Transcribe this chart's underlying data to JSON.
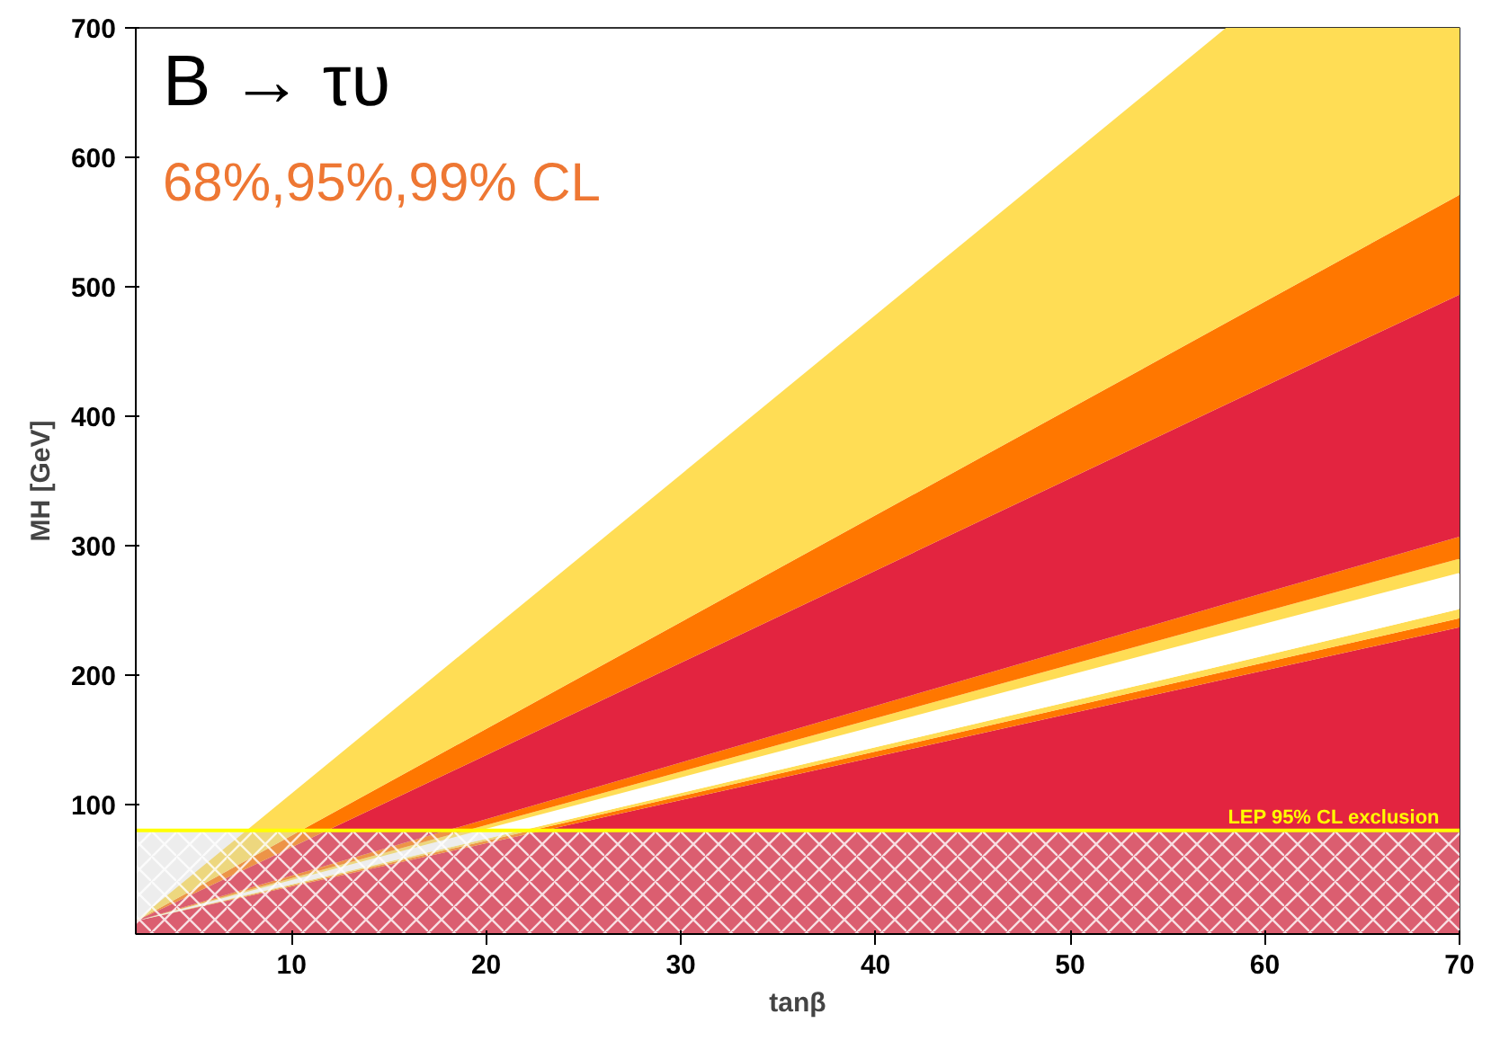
{
  "chart_data": {
    "type": "area",
    "stacked": true,
    "xlabel": "tanβ",
    "ylabel": "MH [GeV]",
    "annotations": [
      "B → τυ",
      "68%,95%,99% CL"
    ],
    "x": [
      2,
      58,
      70
    ],
    "series": [
      {
        "color": "#e32440",
        "values": [
          10,
          197,
          237
        ]
      },
      {
        "color": "#ff7700",
        "values": [
          0,
          6,
          7
        ]
      },
      {
        "color": "#ffdd55",
        "values": [
          0,
          5,
          7
        ]
      },
      {
        "color": "#ffffff",
        "values": [
          0,
          24,
          28
        ]
      },
      {
        "color": "#ffdd55",
        "values": [
          0,
          9,
          11
        ]
      },
      {
        "color": "#ff7700",
        "values": [
          0,
          14,
          17
        ]
      },
      {
        "color": "#e32440",
        "values": [
          0,
          154,
          187
        ]
      },
      {
        "color": "#ff7700",
        "values": [
          0,
          63,
          77
        ]
      },
      {
        "color": "#ffdd55",
        "values": [
          0,
          228,
          129
        ]
      }
    ],
    "bands": [
      {
        "axis": "y",
        "from": 0,
        "to": 80,
        "color": "#cccccc"
      }
    ],
    "ref_lines": [
      {
        "axis": "y",
        "value": 80,
        "label": "LEP 95% CL exclusion",
        "color": "#ffff00"
      }
    ],
    "xlim": [
      2,
      70
    ],
    "ylim": [
      0,
      700
    ],
    "xticks": [
      10,
      20,
      30,
      40,
      50,
      60,
      70
    ],
    "yticks": [
      100,
      200,
      300,
      400,
      500,
      600,
      700
    ],
    "grid": false
  }
}
